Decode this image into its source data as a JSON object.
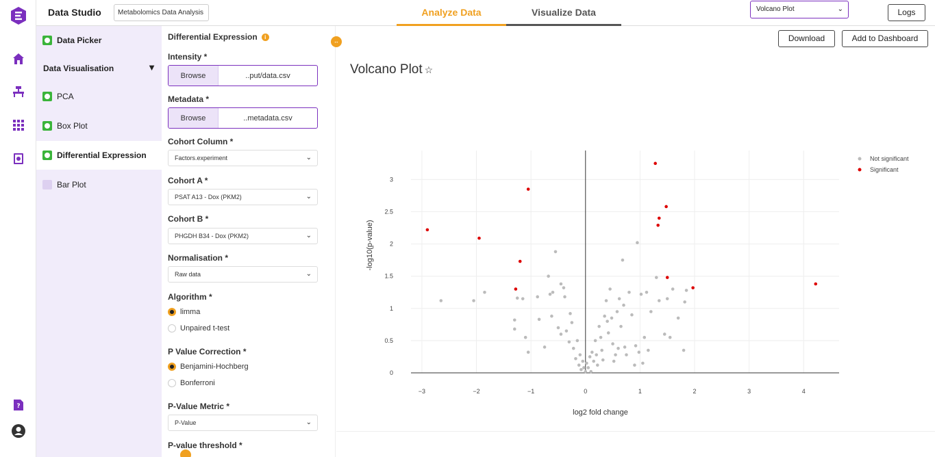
{
  "app": {
    "title": "Data Studio",
    "project_name": "Metabolomics Data Analysis"
  },
  "tabs": [
    {
      "label": "Analyze Data",
      "active": true
    },
    {
      "label": "Visualize Data",
      "active": false
    }
  ],
  "plot_selector": {
    "value": "Volcano Plot"
  },
  "logs_label": "Logs",
  "rail_icons": [
    "logo-icon",
    "home-icon",
    "lab-bench-icon",
    "grid-icon",
    "report-icon",
    "help-doc-icon",
    "user-icon"
  ],
  "nav": {
    "data_picker": "Data Picker",
    "group": "Data Visualisation",
    "items": [
      {
        "label": "PCA",
        "done": true
      },
      {
        "label": "Box Plot",
        "done": true
      },
      {
        "label": "Differential Expression",
        "done": true,
        "active": true
      },
      {
        "label": "Bar Plot",
        "done": false
      }
    ]
  },
  "form": {
    "section_title": "Differential Expression",
    "intensity": {
      "label": "Intensity *",
      "browse": "Browse",
      "file": "..put/data.csv"
    },
    "metadata": {
      "label": "Metadata *",
      "browse": "Browse",
      "file": "..metadata.csv"
    },
    "cohort_column": {
      "label": "Cohort Column *",
      "value": "Factors.experiment"
    },
    "cohort_a": {
      "label": "Cohort A *",
      "value": "PSAT A13 - Dox (PKM2)"
    },
    "cohort_b": {
      "label": "Cohort B *",
      "value": "PHGDH B34 - Dox (PKM2)"
    },
    "normalisation": {
      "label": "Normalisation *",
      "value": "Raw data"
    },
    "algorithm": {
      "label": "Algorithm *",
      "options": [
        "limma",
        "Unpaired t-test"
      ],
      "selected": "limma"
    },
    "p_correction": {
      "label": "P Value Correction *",
      "options": [
        "Benjamini-Hochberg",
        "Bonferroni"
      ],
      "selected": "Benjamini-Hochberg"
    },
    "p_metric": {
      "label": "P-Value Metric *",
      "value": "P-Value"
    },
    "p_threshold": {
      "label": "P-value threshold *"
    }
  },
  "actions": {
    "download": "Download",
    "add_dashboard": "Add to Dashboard"
  },
  "plot": {
    "title": "Volcano Plot"
  },
  "colors": {
    "accent": "#f0a020",
    "brand": "#7b2fbe",
    "significant": "#dd0000",
    "not_significant": "#bbbbbb"
  },
  "chart_data": {
    "type": "scatter",
    "title": "",
    "xlabel": "log2 fold change",
    "ylabel": "-log10(p-value)",
    "xlim": [
      -3.2,
      4.65
    ],
    "ylim": [
      0,
      3.45
    ],
    "xticks": [
      "−3",
      "−2",
      "−1",
      "0",
      "1",
      "2",
      "3",
      "4"
    ],
    "yticks": [
      "0",
      "0.5",
      "1",
      "1.5",
      "2",
      "2.5",
      "3"
    ],
    "legend_position": "top-right",
    "series": [
      {
        "name": "Not significant",
        "color": "#bbbbbb",
        "points": [
          [
            -2.65,
            1.12
          ],
          [
            -2.05,
            1.12
          ],
          [
            -1.85,
            1.25
          ],
          [
            -1.3,
            0.82
          ],
          [
            -1.3,
            0.68
          ],
          [
            -1.25,
            1.16
          ],
          [
            -1.15,
            1.15
          ],
          [
            -1.1,
            0.55
          ],
          [
            -1.05,
            0.32
          ],
          [
            -0.88,
            1.18
          ],
          [
            -0.85,
            0.83
          ],
          [
            -0.75,
            0.4
          ],
          [
            -0.68,
            1.5
          ],
          [
            -0.65,
            1.22
          ],
          [
            -0.62,
            0.88
          ],
          [
            -0.6,
            1.25
          ],
          [
            -0.55,
            1.88
          ],
          [
            -0.5,
            0.7
          ],
          [
            -0.45,
            1.38
          ],
          [
            -0.45,
            0.6
          ],
          [
            -0.4,
            1.32
          ],
          [
            -0.38,
            1.18
          ],
          [
            -0.35,
            0.65
          ],
          [
            -0.3,
            0.48
          ],
          [
            -0.28,
            0.92
          ],
          [
            -0.25,
            0.78
          ],
          [
            -0.22,
            0.38
          ],
          [
            -0.18,
            0.22
          ],
          [
            -0.15,
            0.5
          ],
          [
            -0.12,
            0.12
          ],
          [
            -0.1,
            0.28
          ],
          [
            -0.08,
            0.05
          ],
          [
            -0.05,
            0.18
          ],
          [
            -0.03,
            0.08
          ],
          [
            0.0,
            0.02
          ],
          [
            0.02,
            0.15
          ],
          [
            0.05,
            0.08
          ],
          [
            0.08,
            0.25
          ],
          [
            0.1,
            0.02
          ],
          [
            0.12,
            0.32
          ],
          [
            0.15,
            0.18
          ],
          [
            0.18,
            0.5
          ],
          [
            0.2,
            0.28
          ],
          [
            0.22,
            0.12
          ],
          [
            0.25,
            0.72
          ],
          [
            0.28,
            0.55
          ],
          [
            0.3,
            0.35
          ],
          [
            0.32,
            0.2
          ],
          [
            0.35,
            0.88
          ],
          [
            0.38,
            1.12
          ],
          [
            0.4,
            0.8
          ],
          [
            0.42,
            0.62
          ],
          [
            0.45,
            1.3
          ],
          [
            0.48,
            0.85
          ],
          [
            0.5,
            0.45
          ],
          [
            0.52,
            0.18
          ],
          [
            0.55,
            0.28
          ],
          [
            0.58,
            0.95
          ],
          [
            0.6,
            0.38
          ],
          [
            0.62,
            1.15
          ],
          [
            0.65,
            0.72
          ],
          [
            0.68,
            1.75
          ],
          [
            0.7,
            1.05
          ],
          [
            0.72,
            0.4
          ],
          [
            0.75,
            0.28
          ],
          [
            0.8,
            1.25
          ],
          [
            0.85,
            0.9
          ],
          [
            0.9,
            0.12
          ],
          [
            0.92,
            0.42
          ],
          [
            0.95,
            2.02
          ],
          [
            0.98,
            0.32
          ],
          [
            1.02,
            1.22
          ],
          [
            1.05,
            0.15
          ],
          [
            1.08,
            0.55
          ],
          [
            1.12,
            1.25
          ],
          [
            1.15,
            0.35
          ],
          [
            1.2,
            0.95
          ],
          [
            1.3,
            1.48
          ],
          [
            1.35,
            1.12
          ],
          [
            1.45,
            0.6
          ],
          [
            1.5,
            1.15
          ],
          [
            1.55,
            0.55
          ],
          [
            1.6,
            1.3
          ],
          [
            1.7,
            0.85
          ],
          [
            1.8,
            0.35
          ],
          [
            1.82,
            1.1
          ],
          [
            1.85,
            1.28
          ]
        ]
      },
      {
        "name": "Significant",
        "color": "#dd0000",
        "points": [
          [
            -2.9,
            2.22
          ],
          [
            -1.95,
            2.09
          ],
          [
            -1.05,
            2.85
          ],
          [
            -1.2,
            1.73
          ],
          [
            -1.28,
            1.3
          ],
          [
            1.28,
            3.25
          ],
          [
            1.48,
            2.58
          ],
          [
            1.35,
            2.4
          ],
          [
            1.33,
            2.29
          ],
          [
            1.5,
            1.48
          ],
          [
            1.97,
            1.32
          ],
          [
            4.22,
            1.38
          ]
        ]
      }
    ]
  }
}
